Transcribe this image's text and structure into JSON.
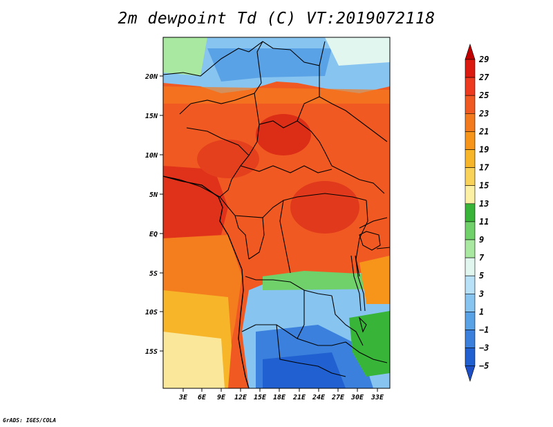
{
  "title": "2m dewpoint Td (C) VT:2019072118",
  "credit": "GrADS: IGES/COLA",
  "map": {
    "lat_labels": [
      "20N",
      "15N",
      "10N",
      "5N",
      "EQ",
      "5S",
      "10S",
      "15S"
    ],
    "lon_labels": [
      "3E",
      "6E",
      "9E",
      "12E",
      "15E",
      "18E",
      "21E",
      "24E",
      "27E",
      "30E",
      "33E"
    ]
  },
  "colorbar": {
    "labels": [
      "29",
      "27",
      "25",
      "23",
      "21",
      "19",
      "17",
      "15",
      "13",
      "11",
      "9",
      "7",
      "5",
      "3",
      "1",
      "−1",
      "−3",
      "−5"
    ],
    "colors": [
      "#c00000",
      "#dc1a0f",
      "#ee3a1f",
      "#f05a22",
      "#f47a1e",
      "#f7951a",
      "#f7b52a",
      "#f9d25a",
      "#fbf0a4",
      "#38b438",
      "#70d06a",
      "#a8e8a0",
      "#e2f6f0",
      "#b8e0f6",
      "#88c4f0",
      "#5aa2e6",
      "#3a80dc",
      "#2060d0",
      "#1e4ec4"
    ]
  }
}
